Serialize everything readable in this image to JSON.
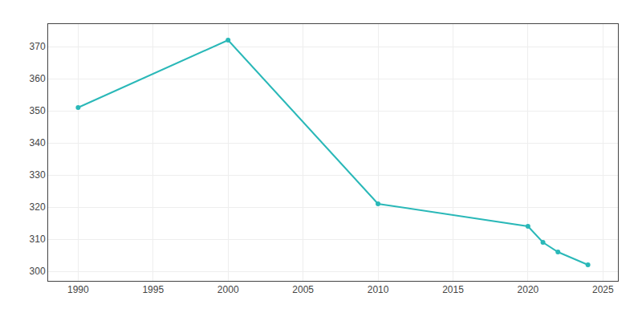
{
  "chart_data": {
    "type": "line",
    "x": [
      1990,
      2000,
      2010,
      2020,
      2021,
      2022,
      2024
    ],
    "values": [
      351,
      372,
      321,
      314,
      309,
      306,
      302
    ],
    "color": "#2AB8B8",
    "marker": "circle",
    "xlim": [
      1988,
      2026
    ],
    "ylim": [
      297,
      377
    ],
    "xticks": [
      1990,
      1995,
      2000,
      2005,
      2010,
      2015,
      2020,
      2025
    ],
    "yticks": [
      300,
      310,
      320,
      330,
      340,
      350,
      360,
      370
    ],
    "grid": true
  }
}
